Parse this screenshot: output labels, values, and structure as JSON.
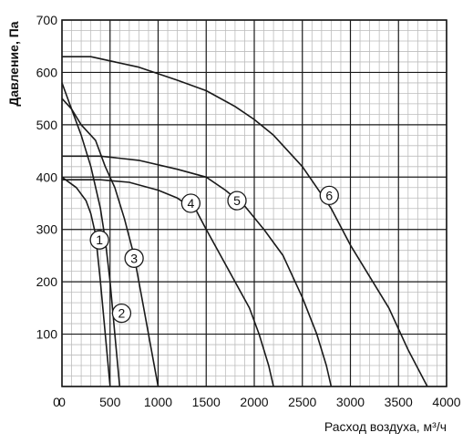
{
  "chart_data": {
    "type": "line",
    "title": "",
    "xlabel": "Расход воздуха, м³/ч",
    "ylabel": "Давление, Па",
    "xlim": [
      0,
      4000
    ],
    "ylim": [
      0,
      700
    ],
    "x_ticks": [
      "0",
      "500",
      "1000",
      "1500",
      "2000",
      "2500",
      "3000",
      "3500",
      "4000"
    ],
    "y_ticks": [
      "100",
      "200",
      "300",
      "400",
      "500",
      "600",
      "700"
    ],
    "grid": true,
    "series": [
      {
        "name": "1",
        "x": [
          0,
          150,
          250,
          300,
          350,
          400,
          450,
          500
        ],
        "y": [
          400,
          380,
          355,
          330,
          290,
          200,
          100,
          0
        ],
        "label_at": [
          390,
          280
        ]
      },
      {
        "name": "2",
        "x": [
          0,
          100,
          200,
          300,
          400,
          450,
          500,
          550,
          600
        ],
        "y": [
          580,
          530,
          480,
          420,
          340,
          280,
          200,
          100,
          0
        ],
        "label_at": [
          620,
          140
        ]
      },
      {
        "name": "3",
        "x": [
          0,
          100,
          200,
          350,
          450,
          550,
          650,
          750,
          850,
          950,
          1000
        ],
        "y": [
          550,
          530,
          500,
          470,
          420,
          380,
          320,
          250,
          150,
          50,
          0
        ],
        "label_at": [
          750,
          245
        ]
      },
      {
        "name": "4",
        "x": [
          0,
          400,
          700,
          1000,
          1200,
          1400,
          1500,
          1650,
          1800,
          1950,
          2050,
          2150,
          2200
        ],
        "y": [
          395,
          395,
          390,
          375,
          360,
          335,
          300,
          250,
          200,
          150,
          100,
          40,
          0
        ],
        "label_at": [
          1340,
          350
        ]
      },
      {
        "name": "5",
        "x": [
          0,
          400,
          800,
          1200,
          1500,
          1700,
          1900,
          2100,
          2300,
          2500,
          2650,
          2750,
          2800
        ],
        "y": [
          440,
          440,
          432,
          415,
          400,
          375,
          345,
          300,
          250,
          170,
          100,
          40,
          0
        ],
        "label_at": [
          1820,
          355
        ]
      },
      {
        "name": "6",
        "x": [
          0,
          300,
          800,
          1200,
          1500,
          1800,
          2000,
          2200,
          2500,
          2800,
          3000,
          3200,
          3400,
          3600,
          3800
        ],
        "y": [
          630,
          630,
          610,
          585,
          565,
          535,
          510,
          480,
          420,
          340,
          270,
          210,
          150,
          70,
          0
        ],
        "label_at": [
          2780,
          365
        ]
      }
    ]
  },
  "colors": {
    "grid_minor": "#bdbdbd",
    "grid_major": "#1a1a1a",
    "curve": "#1a1a1a",
    "label_fill": "#ffffff"
  }
}
